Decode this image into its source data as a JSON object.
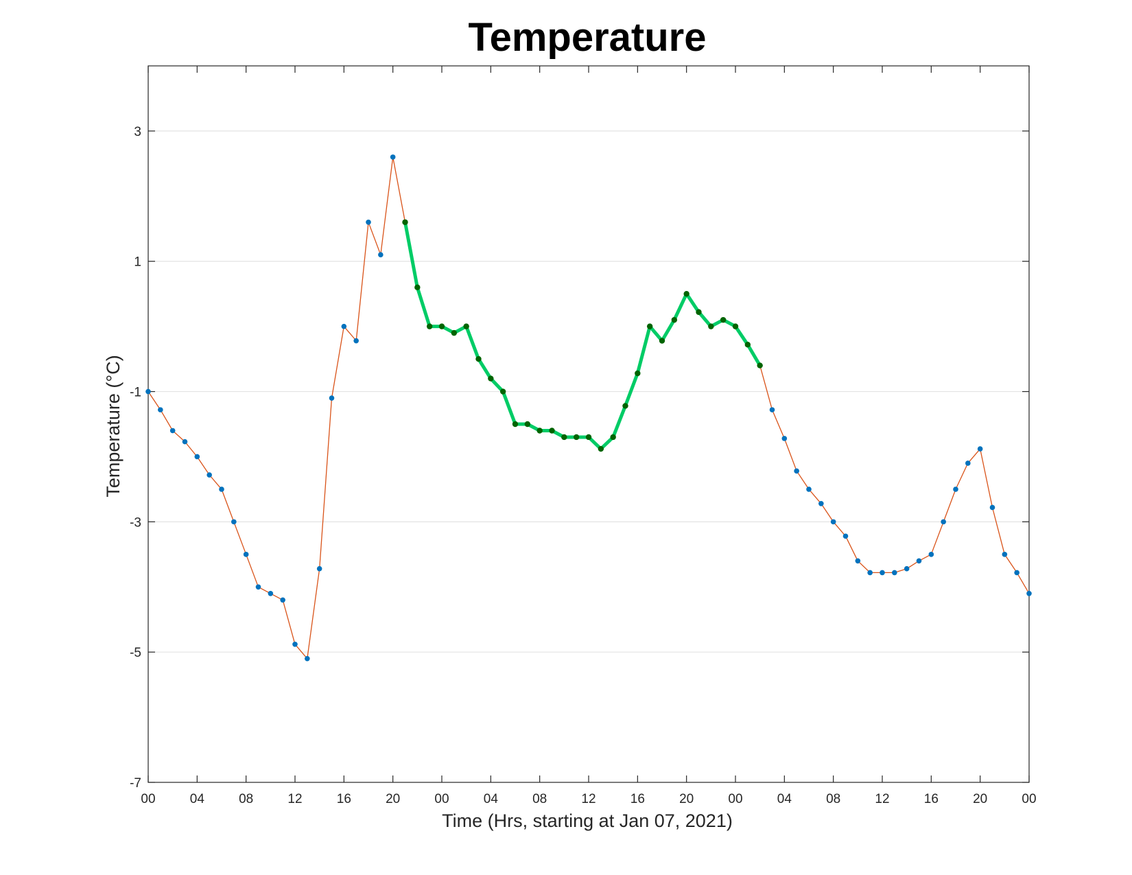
{
  "chart_data": {
    "type": "line",
    "title": "Temperature",
    "xlabel": "Time (Hrs, starting at Jan 07, 2021)",
    "ylabel": "Temperature (°C)",
    "x_unit": "hours",
    "xlim": [
      0,
      72
    ],
    "ylim": [
      -7,
      4
    ],
    "x_ticks": [
      0,
      4,
      8,
      12,
      16,
      20,
      24,
      28,
      32,
      36,
      40,
      44,
      48,
      52,
      56,
      60,
      64,
      68,
      72
    ],
    "x_tick_labels": [
      "00",
      "04",
      "08",
      "12",
      "16",
      "20",
      "00",
      "04",
      "08",
      "12",
      "16",
      "20",
      "00",
      "04",
      "08",
      "12",
      "16",
      "20",
      "00"
    ],
    "y_ticks": [
      -7,
      -5,
      -3,
      -1,
      1,
      3
    ],
    "y_tick_labels": [
      "-7",
      "-5",
      "-3",
      "-1",
      "1",
      "3"
    ],
    "grid": "horizontal",
    "series": [
      {
        "x": [
          0,
          1,
          2,
          3,
          4,
          5,
          6,
          7,
          8,
          9,
          10,
          11,
          12,
          13,
          14,
          15,
          16,
          17,
          18,
          19,
          20,
          21,
          22,
          23,
          24,
          25,
          26,
          27,
          28,
          29,
          30,
          31,
          32,
          33,
          34,
          35,
          36,
          37,
          38,
          39,
          40,
          41,
          42,
          43,
          44,
          45,
          46,
          47,
          48,
          49,
          50,
          51,
          52,
          53,
          54,
          55,
          56,
          57,
          58,
          59,
          60,
          61,
          62,
          63,
          64,
          65,
          66,
          67,
          68,
          69,
          70,
          71,
          72
        ],
        "values": [
          -1.0,
          -1.28,
          -1.6,
          -1.77,
          -2.0,
          -2.28,
          -2.5,
          -3.0,
          -3.5,
          -4.0,
          -4.1,
          -4.2,
          -4.88,
          -5.1,
          -3.72,
          -1.1,
          0.0,
          -0.22,
          1.6,
          1.1,
          2.6,
          1.6,
          0.6,
          0.0,
          0.0,
          -0.1,
          0.0,
          -0.5,
          -0.8,
          -1.0,
          -1.5,
          -1.5,
          -1.6,
          -1.6,
          -1.7,
          -1.7,
          -1.7,
          -1.88,
          -1.7,
          -1.22,
          -0.72,
          0.0,
          -0.22,
          0.1,
          0.5,
          0.22,
          0.0,
          0.1,
          0.0,
          -0.28,
          -0.6,
          -1.28,
          -1.72,
          -2.22,
          -2.5,
          -2.72,
          -3.0,
          -3.22,
          -3.6,
          -3.78,
          -3.78,
          -3.78,
          -3.72,
          -3.6,
          -3.5,
          -3.0,
          -2.5,
          -2.1,
          -1.88,
          -2.78,
          -3.5,
          -3.78,
          -4.1
        ],
        "line_color": "#D95319",
        "marker_color": "#0072BD"
      },
      {
        "x": [
          21,
          22,
          23,
          24,
          25,
          26,
          27,
          28,
          29,
          30,
          31,
          32,
          33,
          34,
          35,
          36,
          37,
          38,
          39,
          40,
          41,
          42,
          43,
          44,
          45,
          46,
          47,
          48,
          49,
          50
        ],
        "values": [
          1.6,
          0.6,
          0.0,
          0.0,
          -0.1,
          0.0,
          -0.5,
          -0.8,
          -1.0,
          -1.5,
          -1.5,
          -1.6,
          -1.6,
          -1.7,
          -1.7,
          -1.7,
          -1.88,
          -1.7,
          -1.22,
          -0.72,
          0.0,
          -0.22,
          0.1,
          0.5,
          0.22,
          0.0,
          0.1,
          0.0,
          -0.28,
          -0.6
        ],
        "line_color": "#00CC66",
        "marker_color": "#006400"
      }
    ]
  }
}
